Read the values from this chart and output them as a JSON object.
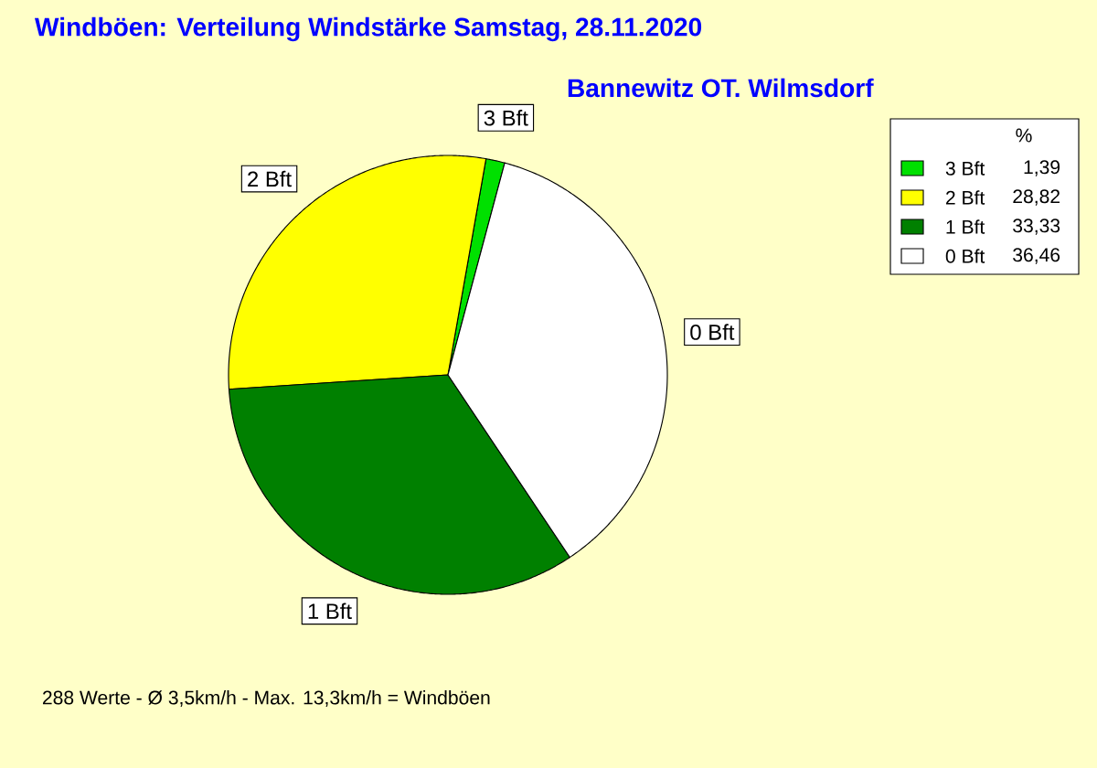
{
  "chart_data": {
    "type": "pie",
    "title": "Windböen: Verteilung Windstärke  Samstag, 28.11.2020",
    "subtitle": "Bannewitz OT. Wilmsdorf",
    "categories": [
      "3 Bft",
      "2 Bft",
      "1 Bft",
      "0 Bft"
    ],
    "values": [
      1.39,
      28.82,
      33.33,
      36.46
    ],
    "value_labels": [
      "1,39",
      "28,82",
      "33,33",
      "36,46"
    ],
    "colors": [
      "#00e000",
      "#ffff00",
      "#008000",
      "#ffffff"
    ],
    "legend_title": "%",
    "legend": "top right",
    "annotations": [
      "288 Werte   -   Ø 3,5km/h   -   Max. 13,3km/h = Windböen"
    ]
  }
}
